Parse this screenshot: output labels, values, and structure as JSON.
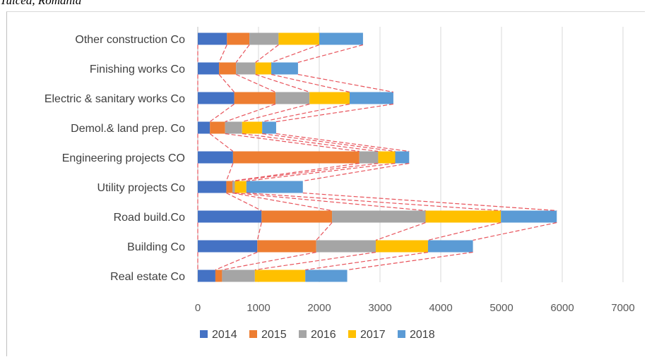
{
  "caption": "Tulcea, Romania",
  "chart_data": {
    "type": "bar",
    "orientation": "horizontal",
    "stacked": true,
    "categories": [
      "Other construction Co",
      "Finishing works Co",
      "Electric & sanitary works Co",
      "Demol.& land prep. Co",
      "Engineering projects CO",
      "Utility projects Co",
      "Road build.Co",
      "Building Co",
      "Real estate Co"
    ],
    "series": [
      {
        "name": "2014",
        "color": "#4472c4",
        "values": [
          480,
          350,
          600,
          200,
          580,
          470,
          1050,
          980,
          290
        ]
      },
      {
        "name": "2015",
        "color": "#ed7d31",
        "values": [
          370,
          280,
          680,
          250,
          2080,
          100,
          1160,
          970,
          110
        ]
      },
      {
        "name": "2016",
        "color": "#a5a5a5",
        "values": [
          480,
          320,
          560,
          280,
          310,
          40,
          1540,
          980,
          540
        ]
      },
      {
        "name": "2017",
        "color": "#ffc000",
        "values": [
          670,
          260,
          660,
          330,
          280,
          190,
          1240,
          860,
          830
        ]
      },
      {
        "name": "2018",
        "color": "#5b9bd5",
        "values": [
          720,
          440,
          720,
          230,
          230,
          930,
          920,
          740,
          690
        ]
      }
    ],
    "x_ticks": [
      "0",
      "1000",
      "2000",
      "3000",
      "4000",
      "5000",
      "6000",
      "7000"
    ],
    "xlim": [
      0,
      7000
    ],
    "grid": true,
    "legend_position": "bottom",
    "series_lines": {
      "color": "#e8545c",
      "style": "dashed"
    }
  }
}
